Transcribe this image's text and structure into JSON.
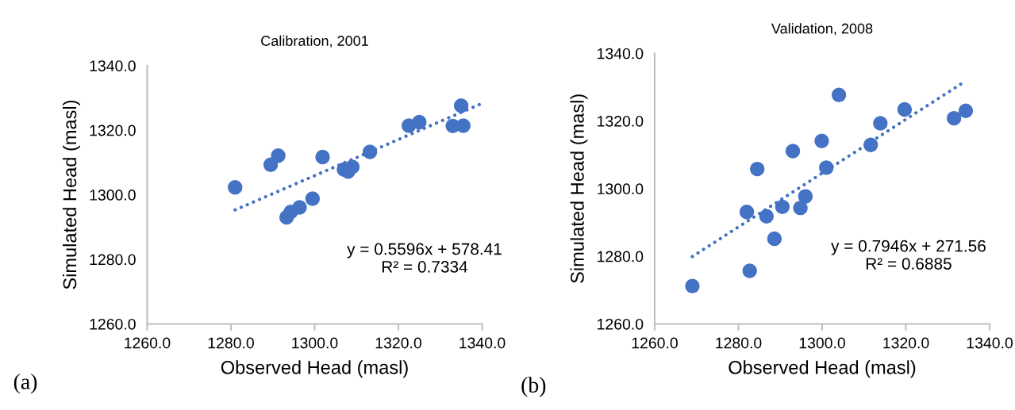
{
  "chart_data": [
    {
      "type": "scatter",
      "title": "Calibration, 2001",
      "xlabel": "Observed Head (masl)",
      "ylabel": "Simulated Head (masl)",
      "xlim": [
        1260,
        1340
      ],
      "xticks": [
        {
          "value": 1260,
          "label": "1260.0"
        },
        {
          "value": 1280,
          "label": "1280.0"
        },
        {
          "value": 1300,
          "label": "1300.0"
        },
        {
          "value": 1320,
          "label": "1320.0"
        },
        {
          "value": 1340,
          "label": "1340.0"
        }
      ],
      "ylim": [
        1260,
        1340
      ],
      "yticks": [
        {
          "value": 1260,
          "label": "1260.0"
        },
        {
          "value": 1280,
          "label": "1280.0"
        },
        {
          "value": 1300,
          "label": "1300.0"
        },
        {
          "value": 1320,
          "label": "1320.0"
        },
        {
          "value": 1340,
          "label": "1340.0"
        }
      ],
      "grid": false,
      "legend": false,
      "series": [
        {
          "marker": "circle",
          "color": "#4472c4",
          "x": [
            1281,
            1289.5,
            1291.3,
            1293.3,
            1294.3,
            1296.4,
            1299.5,
            1301.9,
            1307,
            1308,
            1309,
            1313.2,
            1322.5,
            1325,
            1333,
            1335,
            1335.5
          ],
          "values": [
            1302.3,
            1309.3,
            1312.1,
            1293.0,
            1294.7,
            1296.1,
            1298.8,
            1311.7,
            1307.8,
            1307.2,
            1308.6,
            1313.3,
            1321.4,
            1322.5,
            1321.3,
            1327.6,
            1321.4
          ]
        },
        {
          "type": "line",
          "color": "#4472c4",
          "line_style": "dotted",
          "x": [
            1281,
            1340
          ],
          "values": [
            1295.3,
            1328.3
          ]
        }
      ],
      "annotations": [
        "y = 0.5596x + 578.41\nR² = 0.7334",
        "(a)"
      ]
    },
    {
      "type": "scatter",
      "title": "Validation, 2008",
      "xlabel": "Observed Head (masl)",
      "ylabel": "Simulated Head (masl)",
      "xlim": [
        1260,
        1340
      ],
      "xticks": [
        {
          "value": 1260,
          "label": "1260.0"
        },
        {
          "value": 1280,
          "label": "1280.0"
        },
        {
          "value": 1300,
          "label": "1300.0"
        },
        {
          "value": 1320,
          "label": "1320.0"
        },
        {
          "value": 1340,
          "label": "1340.0"
        }
      ],
      "ylim": [
        1260,
        1340
      ],
      "yticks": [
        {
          "value": 1260,
          "label": "1260.0"
        },
        {
          "value": 1280,
          "label": "1280.0"
        },
        {
          "value": 1300,
          "label": "1300.0"
        },
        {
          "value": 1320,
          "label": "1320.0"
        },
        {
          "value": 1340,
          "label": "1340.0"
        }
      ],
      "grid": false,
      "legend": false,
      "series": [
        {
          "marker": "circle",
          "color": "#4472c4",
          "x": [
            1269,
            1282,
            1282.7,
            1284.5,
            1286.7,
            1288.6,
            1290.5,
            1293,
            1294.8,
            1296,
            1299.9,
            1301,
            1304,
            1311.6,
            1313.9,
            1319.7,
            1331.5,
            1334.3
          ],
          "values": [
            1271.2,
            1293.1,
            1275.7,
            1305.8,
            1291.8,
            1285.2,
            1294.6,
            1311.1,
            1294.3,
            1297.7,
            1314.1,
            1306.2,
            1327.7,
            1312.9,
            1319.3,
            1323.4,
            1320.8,
            1323.0
          ]
        },
        {
          "type": "line",
          "color": "#4472c4",
          "line_style": "dotted",
          "x": [
            1269,
            1334
          ],
          "values": [
            1279.9,
            1331.6
          ]
        }
      ],
      "annotations": [
        "y = 0.7946x + 271.56\nR² = 0.6885",
        "(b)"
      ]
    }
  ]
}
